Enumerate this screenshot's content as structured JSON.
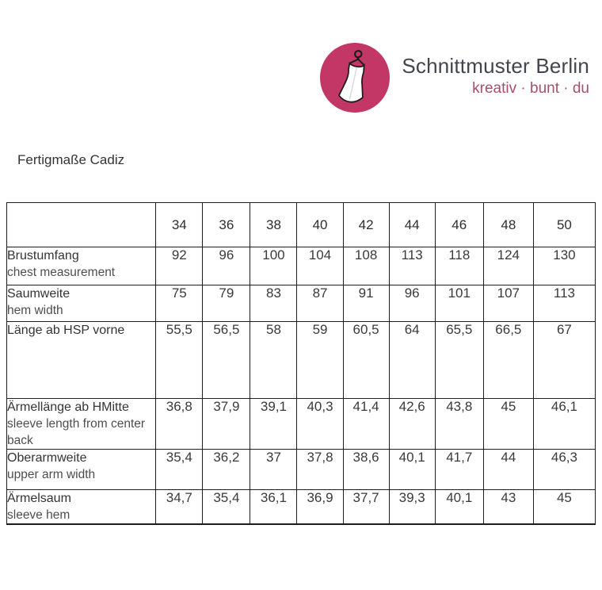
{
  "logo": {
    "brand": "Schnittmuster Berlin",
    "tagline": "kreativ · bunt · du",
    "circle_color": "#c23765",
    "brand_color": "#42454e",
    "tagline_color": "#aa4d6e",
    "icon": "dress-on-hanger-icon"
  },
  "page_title": "Fertigmaße Cadiz",
  "table": {
    "sizes": [
      "34",
      "36",
      "38",
      "40",
      "42",
      "44",
      "46",
      "48",
      "50"
    ],
    "rows": [
      {
        "label_de": "Brustumfang",
        "label_en": "chest measurement",
        "values": [
          "92",
          "96",
          "100",
          "104",
          "108",
          "113",
          "118",
          "124",
          "130"
        ]
      },
      {
        "label_de": "Saumweite",
        "label_en": "hem width",
        "values": [
          "75",
          "79",
          "83",
          "87",
          "91",
          "96",
          "101",
          "107",
          "113"
        ]
      },
      {
        "label_de": "Länge ab HSP vorne",
        "label_en": "",
        "values": [
          "55,5",
          "56,5",
          "58",
          "59",
          "60,5",
          "64",
          "65,5",
          "66,5",
          "67"
        ]
      },
      {
        "label_de": "Ärmellänge ab HMitte",
        "label_en": "sleeve length from center back",
        "values": [
          "36,8",
          "37,9",
          "39,1",
          "40,3",
          "41,4",
          "42,6",
          "43,8",
          "45",
          "46,1"
        ]
      },
      {
        "label_de": "Oberarmweite",
        "label_en": "upper arm width",
        "values": [
          "35,4",
          "36,2",
          "37",
          "37,8",
          "38,6",
          "40,1",
          "41,7",
          "44",
          "46,3"
        ]
      },
      {
        "label_de": "Ärmelsaum",
        "label_en": "sleeve hem",
        "values": [
          "34,7",
          "35,4",
          "36,1",
          "36,9",
          "37,7",
          "39,3",
          "40,1",
          "43",
          "45"
        ]
      }
    ]
  }
}
